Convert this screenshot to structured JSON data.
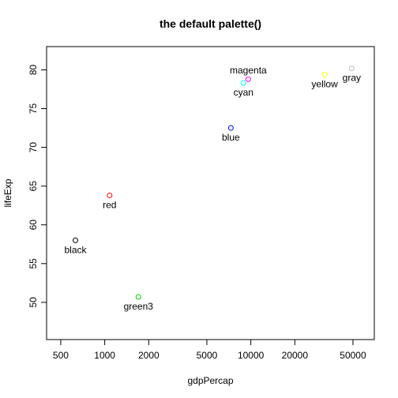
{
  "chart_data": {
    "type": "scatter",
    "title": "the default palette()",
    "xlabel": "gdpPercap",
    "ylabel": "lifeExp",
    "x_scale": "log",
    "xlim": [
      400,
      70000
    ],
    "ylim": [
      45.2,
      83
    ],
    "x_ticks": [
      {
        "value": 500,
        "label": "500"
      },
      {
        "value": 1000,
        "label": "1000"
      },
      {
        "value": 2000,
        "label": "2000"
      },
      {
        "value": 5000,
        "label": "5000"
      },
      {
        "value": 10000,
        "label": "10000"
      },
      {
        "value": 20000,
        "label": "20000"
      },
      {
        "value": 50000,
        "label": "50000"
      }
    ],
    "y_ticks": [
      {
        "value": 50,
        "label": "50"
      },
      {
        "value": 55,
        "label": "55"
      },
      {
        "value": 60,
        "label": "60"
      },
      {
        "value": 65,
        "label": "65"
      },
      {
        "value": 70,
        "label": "70"
      },
      {
        "value": 75,
        "label": "75"
      },
      {
        "value": 80,
        "label": "80"
      }
    ],
    "grid": false,
    "points": [
      {
        "label": "black",
        "x": 630,
        "y": 58.0,
        "color": "#000000",
        "label_pos": "below"
      },
      {
        "label": "red",
        "x": 1080,
        "y": 63.8,
        "color": "#ff0000",
        "label_pos": "below"
      },
      {
        "label": "green3",
        "x": 1700,
        "y": 50.7,
        "color": "#00cd00",
        "label_pos": "below"
      },
      {
        "label": "blue",
        "x": 7300,
        "y": 72.5,
        "color": "#0000ff",
        "label_pos": "below"
      },
      {
        "label": "cyan",
        "x": 8900,
        "y": 78.3,
        "color": "#00ffff",
        "label_pos": "below"
      },
      {
        "label": "magenta",
        "x": 9600,
        "y": 78.8,
        "color": "#ff00ff",
        "label_pos": "above"
      },
      {
        "label": "yellow",
        "x": 32000,
        "y": 79.4,
        "color": "#ffff00",
        "label_pos": "below"
      },
      {
        "label": "gray",
        "x": 49000,
        "y": 80.2,
        "color": "#bebebe",
        "label_pos": "below"
      }
    ]
  }
}
